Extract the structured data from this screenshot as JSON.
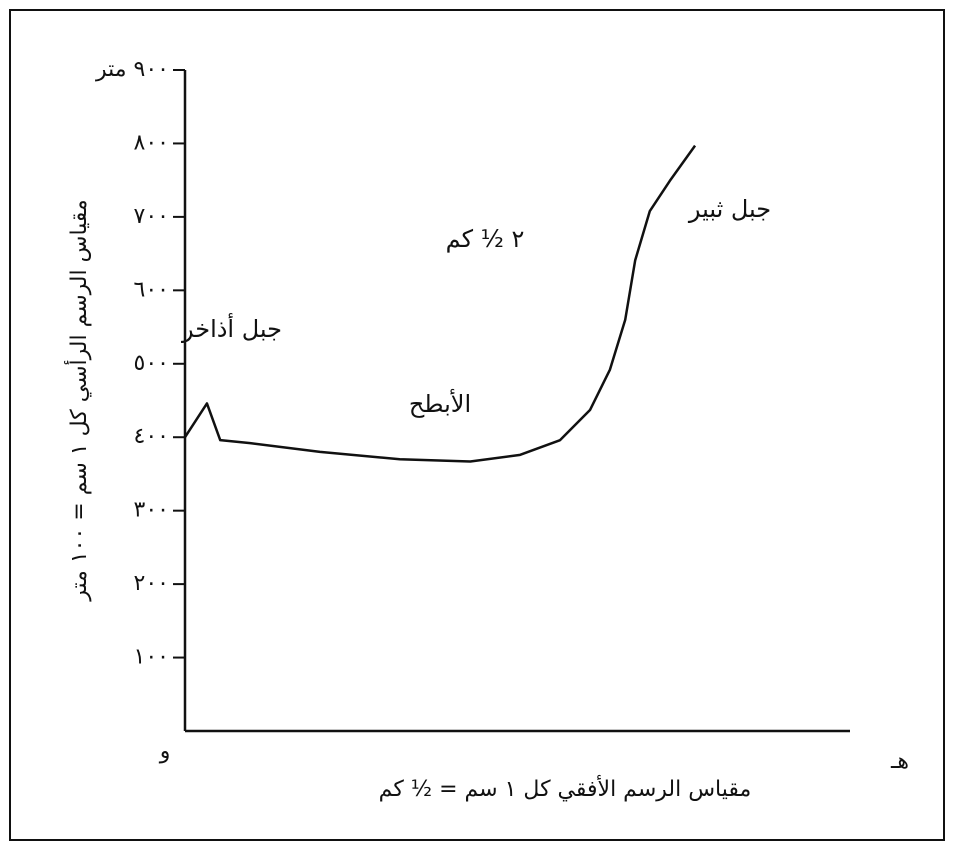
{
  "chart_data": {
    "type": "line",
    "y_label": "مقياس الرسم الرأسي كل ١ سم = ١٠٠ متر",
    "x_label": "مقياس الرسم الأفقي كل ١ سم = ½ كم",
    "origin_label": "و",
    "end_label": "هـ",
    "annotations": [
      "جبل أذاخر",
      "الأبطح",
      "جبل ثبير",
      "٢ ½ كم"
    ],
    "x": [
      0,
      3.3,
      5.3,
      9.8,
      20.3,
      32.3,
      42.9,
      50.4,
      56.4,
      60.9,
      63.9,
      66.2,
      67.7,
      69.9,
      72.9,
      76.7
    ],
    "series": [
      {
        "color": "#111111",
        "values": [
          400,
          446,
          396,
          392,
          380,
          370,
          367,
          376,
          396,
          437,
          492,
          560,
          641,
          708,
          749,
          797
        ]
      }
    ],
    "xlim": [
      0,
      100
    ],
    "ylim": [
      0,
      900
    ],
    "yticks": [
      {
        "value": 100,
        "label": "١٠٠"
      },
      {
        "value": 200,
        "label": "٢٠٠"
      },
      {
        "value": 300,
        "label": "٣٠٠"
      },
      {
        "value": 400,
        "label": "٤٠٠"
      },
      {
        "value": 500,
        "label": "٥٠٠"
      },
      {
        "value": 600,
        "label": "٦٠٠"
      },
      {
        "value": 700,
        "label": "٧٠٠"
      },
      {
        "value": 800,
        "label": "٨٠٠"
      },
      {
        "value": 900,
        "label": "٩٠٠ متر"
      }
    ]
  }
}
